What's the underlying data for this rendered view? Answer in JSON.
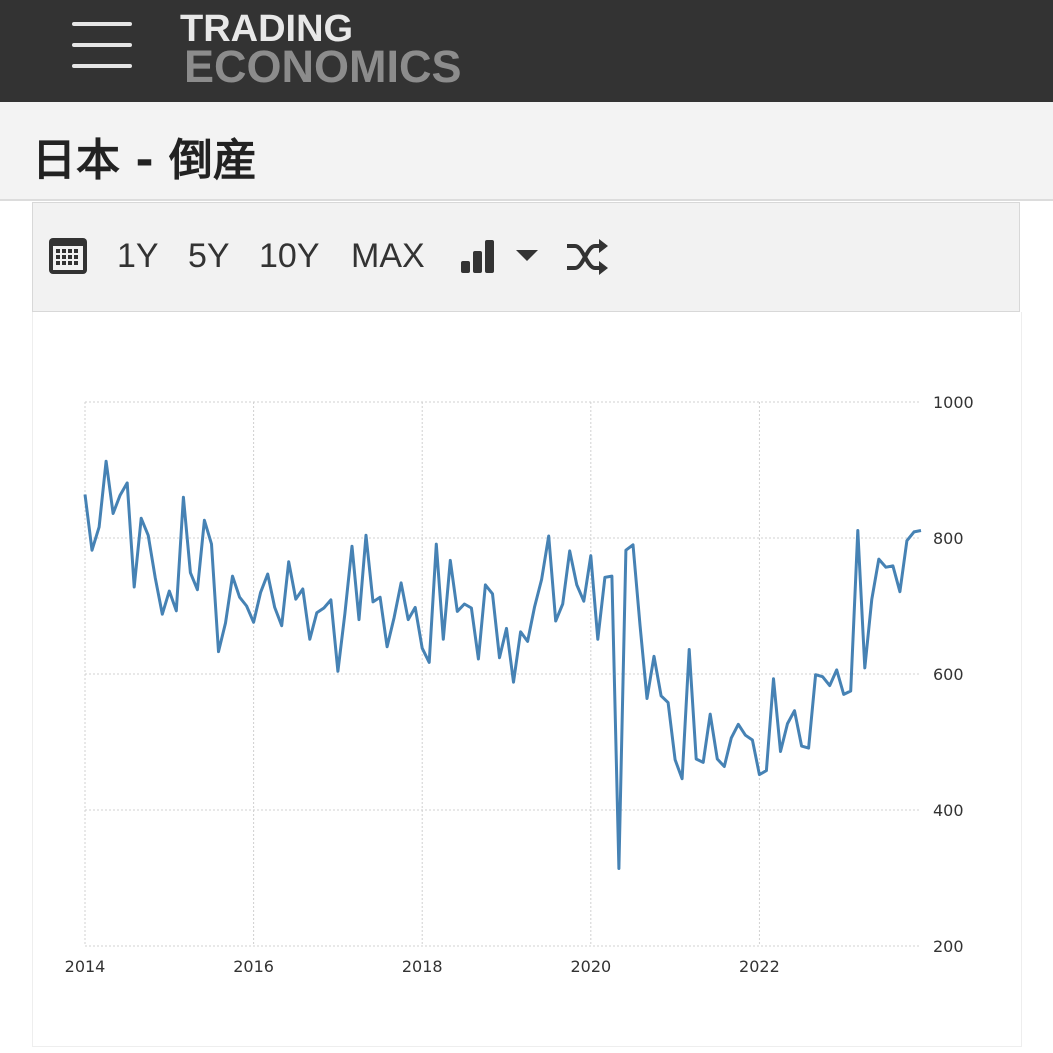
{
  "header": {
    "logo_line1": "TRADING",
    "logo_line2": "ECONOMICS",
    "menu_icon": "hamburger-menu-icon"
  },
  "page": {
    "title": "日本 - 倒産"
  },
  "toolbar": {
    "calendar_icon": "calendar-icon",
    "range_1y": "1Y",
    "range_5y": "5Y",
    "range_10y": "10Y",
    "range_max": "MAX",
    "chart_type_icon": "bar-chart-icon",
    "dropdown_icon": "caret-down-icon",
    "shuffle_icon": "shuffle-icon"
  },
  "colors": {
    "topbar": "#333333",
    "line": "#4682b4",
    "grid": "#d0d0d0"
  },
  "chart_data": {
    "type": "line",
    "title": "",
    "xlabel": "",
    "ylabel": "",
    "ylim": [
      200,
      1000
    ],
    "yticks": [
      200,
      400,
      600,
      800,
      1000
    ],
    "xticks": [
      "2014",
      "2016",
      "2018",
      "2020",
      "2022"
    ],
    "x_start": "2014-01",
    "x_end": "2023-12",
    "grid": true,
    "y_axis_position": "right",
    "series": [
      {
        "values": [
          864,
          782,
          816,
          913,
          836,
          863,
          881,
          728,
          829,
          804,
          741,
          688,
          722,
          693,
          860,
          749,
          724,
          826,
          791,
          633,
          675,
          744,
          713,
          700,
          676,
          720,
          747,
          698,
          671,
          765,
          710,
          725,
          651,
          690,
          697,
          709,
          604,
          689,
          788,
          680,
          804,
          706,
          713,
          640,
          683,
          734,
          680,
          698,
          638,
          617,
          791,
          651,
          767,
          692,
          703,
          697,
          622,
          731,
          718,
          624,
          667,
          588,
          662,
          648,
          699,
          739,
          803,
          678,
          703,
          781,
          731,
          707,
          774,
          651,
          742,
          744,
          314,
          782,
          790,
          672,
          564,
          626,
          568,
          558,
          474,
          446,
          636,
          475,
          470,
          541,
          475,
          464,
          506,
          526,
          510,
          503,
          452,
          458,
          593,
          486,
          527,
          546,
          494,
          491,
          599,
          596,
          583,
          606,
          570,
          575,
          811,
          609,
          710,
          769,
          757,
          759,
          721,
          796,
          809,
          811
        ]
      }
    ]
  }
}
